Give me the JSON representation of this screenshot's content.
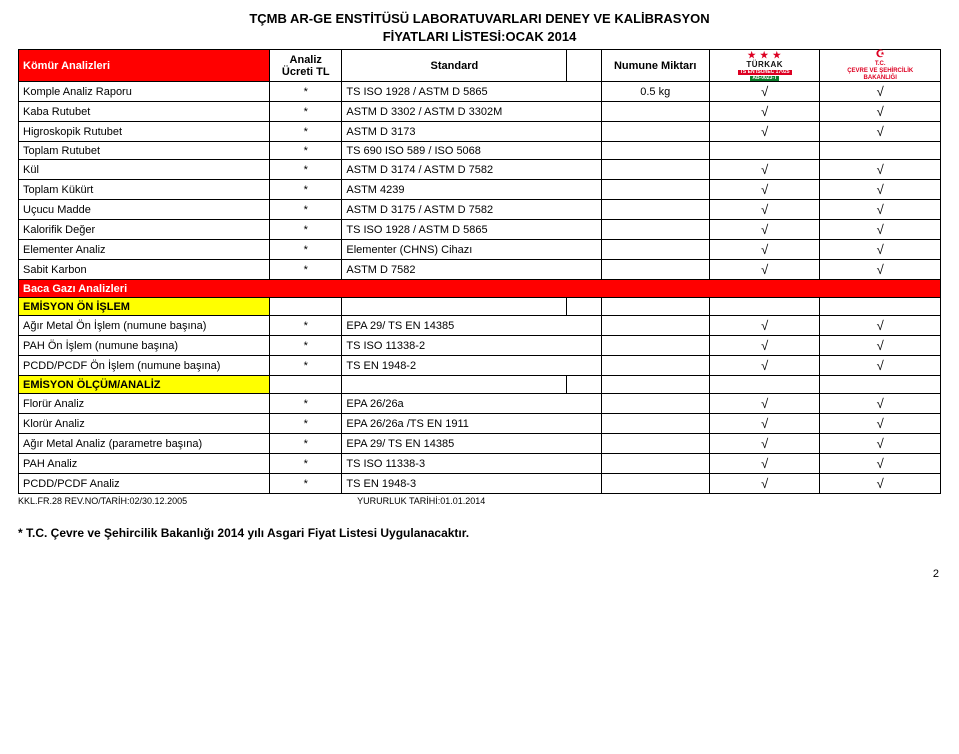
{
  "title_line1": "TÇMB AR-GE ENSTİTÜSÜ LABORATUVARLARI DENEY VE KALİBRASYON",
  "title_line2": "FİYATLARI LİSTESİ:OCAK 2014",
  "headers": {
    "section_main": "Kömür Analizleri",
    "price": "Analiz Ücreti TL",
    "standard": "Standard",
    "amount": "Numune Miktarı"
  },
  "logos": {
    "turkak_text": "TÜRKAK",
    "turkak_bar1": "TS EN ISO/IEC 17025",
    "turkak_bar2": "AB-0023-T",
    "cevre_line1": "T.C.",
    "cevre_line2": "ÇEVRE VE ŞEHİRCİLİK",
    "cevre_line3": "BAKANLIĞI"
  },
  "rows": [
    {
      "name": "Komple Analiz Raporu",
      "price": "*",
      "std": "TS ISO 1928 / ASTM D 5865",
      "amt": "0.5 kg",
      "c1": "√",
      "c2": "√"
    },
    {
      "name": "Kaba Rutubet",
      "price": "*",
      "std": "ASTM D 3302 / ASTM D 3302M",
      "amt": "",
      "c1": "√",
      "c2": "√"
    },
    {
      "name": "Higroskopik Rutubet",
      "price": "*",
      "std": "ASTM D 3173",
      "amt": "",
      "c1": "√",
      "c2": "√"
    },
    {
      "name": "Toplam  Rutubet",
      "price": "*",
      "std": "TS 690 ISO 589 / ISO 5068",
      "amt": "",
      "c1": "",
      "c2": ""
    },
    {
      "name": "Kül",
      "price": "*",
      "std": "ASTM D 3174 / ASTM D 7582",
      "amt": "",
      "c1": "√",
      "c2": "√"
    },
    {
      "name": "Toplam Kükürt",
      "price": "*",
      "std": "ASTM 4239",
      "amt": "",
      "c1": "√",
      "c2": "√"
    },
    {
      "name": "Uçucu Madde",
      "price": "*",
      "std": "ASTM D 3175 / ASTM D 7582",
      "amt": "",
      "c1": "√",
      "c2": "√"
    },
    {
      "name": "Kalorifik Değer",
      "price": "*",
      "std": "TS ISO 1928 / ASTM D 5865",
      "amt": "",
      "c1": "√",
      "c2": "√"
    },
    {
      "name": "Elementer Analiz",
      "price": "*",
      "std": "Elementer (CHNS) Cihazı",
      "amt": "",
      "c1": "√",
      "c2": "√"
    },
    {
      "name": "Sabit Karbon",
      "price": "*",
      "std": "ASTM D 7582",
      "amt": "",
      "c1": "√",
      "c2": "√"
    }
  ],
  "section_baca": "Baca Gazı Analizleri",
  "section_emisyon_on": "EMİSYON ÖN İŞLEM",
  "rows_emisyon_on": [
    {
      "name": "Ağır Metal Ön İşlem (numune başına)",
      "price": "*",
      "std": "EPA 29/ TS EN 14385",
      "amt": "",
      "c1": "√",
      "c2": "√"
    },
    {
      "name": "PAH Ön İşlem (numune başına)",
      "price": "*",
      "std": "TS ISO 11338-2",
      "amt": "",
      "c1": "√",
      "c2": "√"
    },
    {
      "name": "PCDD/PCDF Ön İşlem (numune başına)",
      "price": "*",
      "std": "TS EN 1948-2",
      "amt": "",
      "c1": "√",
      "c2": "√"
    }
  ],
  "section_emisyon_olc": "EMİSYON ÖLÇÜM/ANALİZ",
  "rows_emisyon_olc": [
    {
      "name": "Florür Analiz",
      "price": "*",
      "std": "EPA 26/26a",
      "amt": "",
      "c1": "√",
      "c2": "√"
    },
    {
      "name": "Klorür Analiz",
      "price": "*",
      "std": "EPA 26/26a /TS EN 1911",
      "amt": "",
      "c1": "√",
      "c2": "√"
    },
    {
      "name": "Ağır Metal Analiz (parametre başına)",
      "price": "*",
      "std": "EPA 29/ TS EN 14385",
      "amt": "",
      "c1": "√",
      "c2": "√"
    },
    {
      "name": "PAH Analiz",
      "price": "*",
      "std": "TS ISO 11338-3",
      "amt": "",
      "c1": "√",
      "c2": "√"
    },
    {
      "name": "PCDD/PCDF Analiz",
      "price": "*",
      "std": "TS EN 1948-3",
      "amt": "",
      "c1": "√",
      "c2": "√"
    }
  ],
  "footer_left": "KKL.FR.28     REV.NO/TARİH:02/30.12.2005",
  "footer_mid": "YURURLUK TARİHİ:01.01.2014",
  "note": "* T.C. Çevre ve Şehircilik Bakanlığı 2014 yılı Asgari Fiyat Listesi Uygulanacaktır.",
  "page_number": "2",
  "colors": {
    "red": "#ff0000",
    "yellow": "#ffff00"
  }
}
